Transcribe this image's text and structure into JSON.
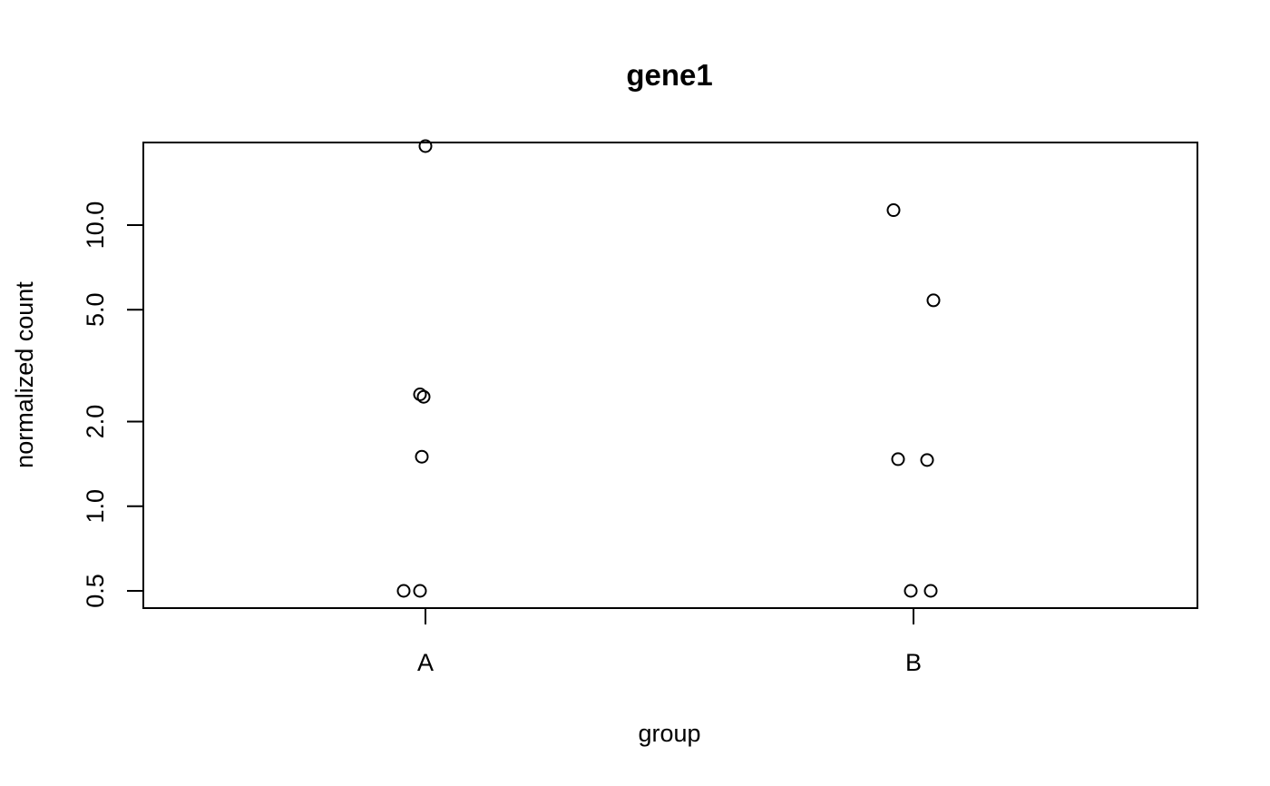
{
  "chart_data": {
    "type": "scatter",
    "title": "gene1",
    "xlabel": "group",
    "ylabel": "normalized count",
    "categories": [
      "A",
      "B"
    ],
    "y_scale": "log",
    "ylim": [
      0.45,
      24
    ],
    "yticks": [
      0.5,
      1.0,
      2.0,
      5.0,
      10.0
    ],
    "ytick_labels": [
      "0.5",
      "1.0",
      "2.0",
      "5.0",
      "10.0"
    ],
    "grid": false,
    "legend": "none",
    "series": [
      {
        "points": [
          {
            "group": "A",
            "y": 19.1
          },
          {
            "group": "A",
            "y": 2.5
          },
          {
            "group": "A",
            "y": 2.45
          },
          {
            "group": "A",
            "y": 1.5
          },
          {
            "group": "A",
            "y": 0.5
          },
          {
            "group": "A",
            "y": 0.5
          },
          {
            "group": "B",
            "y": 11.3
          },
          {
            "group": "B",
            "y": 5.4
          },
          {
            "group": "B",
            "y": 1.47
          },
          {
            "group": "B",
            "y": 1.46
          },
          {
            "group": "B",
            "y": 0.5
          },
          {
            "group": "B",
            "y": 0.5
          }
        ]
      }
    ],
    "colors": {
      "point_stroke": "#000000",
      "axis": "#000000"
    }
  }
}
